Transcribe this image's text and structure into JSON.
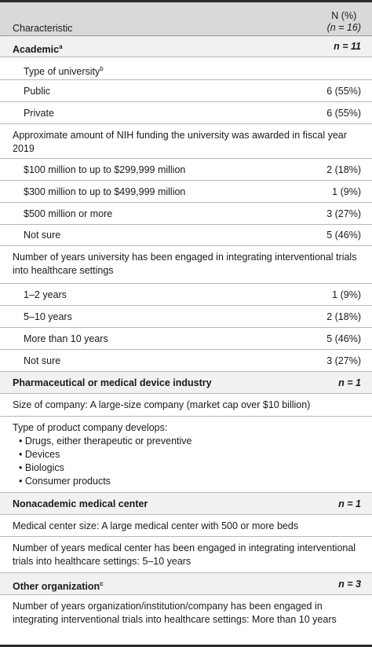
{
  "header": {
    "col1": "Characteristic",
    "col2_line1": "N (%)",
    "col2_line2": "(n = 16)"
  },
  "academic": {
    "label": "Academic",
    "sup": "a",
    "n": "n = 11",
    "type_label": "Type of university",
    "type_sup": "b",
    "public": {
      "label": "Public",
      "value": "6 (55%)"
    },
    "private": {
      "label": "Private",
      "value": "6 (55%)"
    },
    "nih_label": "Approximate amount of NIH funding the university was awarded in fiscal year 2019",
    "nih": [
      {
        "label": "$100 million to up to $299,999 million",
        "value": "2 (18%)"
      },
      {
        "label": "$300 million to up to $499,999 million",
        "value": "1 (9%)"
      },
      {
        "label": "$500 million or more",
        "value": "3 (27%)"
      },
      {
        "label": "Not sure",
        "value": "5 (46%)"
      }
    ],
    "years_label": "Number of years university has been engaged in integrating interventional trials into healthcare settings",
    "years": [
      {
        "label": "1–2 years",
        "value": "1 (9%)"
      },
      {
        "label": "5–10 years",
        "value": "2 (18%)"
      },
      {
        "label": "More than 10 years",
        "value": "5 (46%)"
      },
      {
        "label": "Not sure",
        "value": "3 (27%)"
      }
    ]
  },
  "pharma": {
    "label": "Pharmaceutical or medical device industry",
    "n": "n = 1",
    "size": "Size of company: A large-size company (market cap over $10 billion)",
    "products_label": "Type of product company develops:",
    "products": [
      "Drugs, either therapeutic or preventive",
      "Devices",
      "Biologics",
      "Consumer products"
    ]
  },
  "nonacademic": {
    "label": "Nonacademic medical center",
    "n": "n = 1",
    "size": "Medical center size: A large medical center with 500 or more beds",
    "years": "Number of years medical center has been engaged in integrating interventional trials into healthcare settings: 5–10 years"
  },
  "other": {
    "label": "Other organization",
    "sup": "c",
    "n": "n = 3",
    "years": "Number of years organization/institution/company has been engaged in integrating interventional trials into healthcare settings: More than 10 years"
  }
}
